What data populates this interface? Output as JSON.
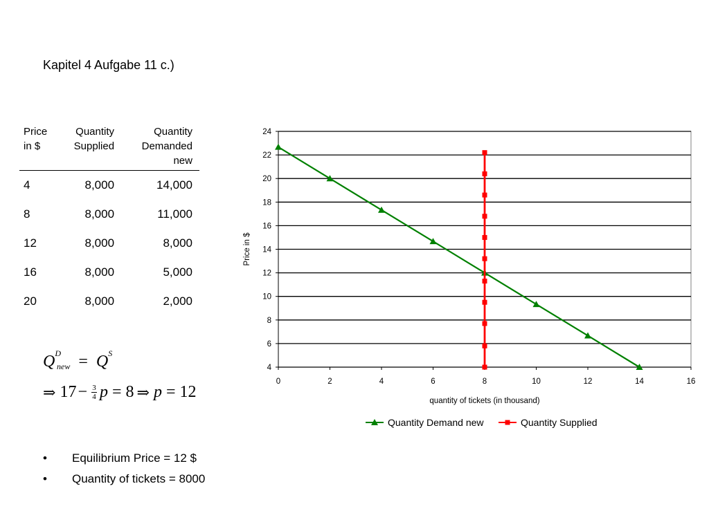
{
  "slide": {
    "title": "Kapitel 4 Aufgabe 11 c.)"
  },
  "table": {
    "headers": [
      "Price in $",
      "Quantity Supplied",
      "Quantity Demanded new"
    ],
    "rows": [
      [
        "4",
        "8,000",
        "14,000"
      ],
      [
        "8",
        "8,000",
        "11,000"
      ],
      [
        "12",
        "8,000",
        "8,000"
      ],
      [
        "16",
        "8,000",
        "5,000"
      ],
      [
        "20",
        "8,000",
        "2,000"
      ]
    ]
  },
  "formula": {
    "q": "Q",
    "d_sup": "D",
    "new_sub": "new",
    "s_sup": "S",
    "eq": "=",
    "implies": "⇒",
    "n17": "17",
    "minus": "−",
    "frac_num": "3",
    "frac_den": "4",
    "p": "p",
    "eight": "8",
    "twelve": "12"
  },
  "bullets": [
    "Equilibrium Price = 12 $",
    "Quantity of tickets = 8000"
  ],
  "colors": {
    "demand": "#008000",
    "supply": "#ff0000",
    "grid": "#000000",
    "plot_border": "#808080"
  },
  "chart_data": {
    "type": "line",
    "xlabel": "quantity of tickets (in thousand)",
    "ylabel": "Price in $",
    "xlim": [
      0,
      16
    ],
    "ylim": [
      4,
      24
    ],
    "xticks": [
      0,
      2,
      4,
      6,
      8,
      10,
      12,
      14,
      16
    ],
    "yticks": [
      4,
      6,
      8,
      10,
      12,
      14,
      16,
      18,
      20,
      22,
      24
    ],
    "grid": "horizontal",
    "legend": "bottom",
    "series": [
      {
        "name": "Quantity Demand new",
        "color": "#008000",
        "marker": "triangle",
        "x": [
          0,
          2,
          4,
          6,
          8,
          10,
          12,
          14
        ],
        "y": [
          22.67,
          20,
          17.33,
          14.67,
          12,
          9.33,
          6.67,
          4
        ]
      },
      {
        "name": "Quantity Supplied",
        "color": "#ff0000",
        "marker": "square",
        "x": [
          8,
          8,
          8,
          8,
          8,
          8,
          8,
          8,
          8,
          8,
          8
        ],
        "y": [
          4,
          5.8,
          7.7,
          9.5,
          11.3,
          13.2,
          15,
          16.8,
          18.6,
          20.4,
          22.2
        ]
      }
    ]
  }
}
